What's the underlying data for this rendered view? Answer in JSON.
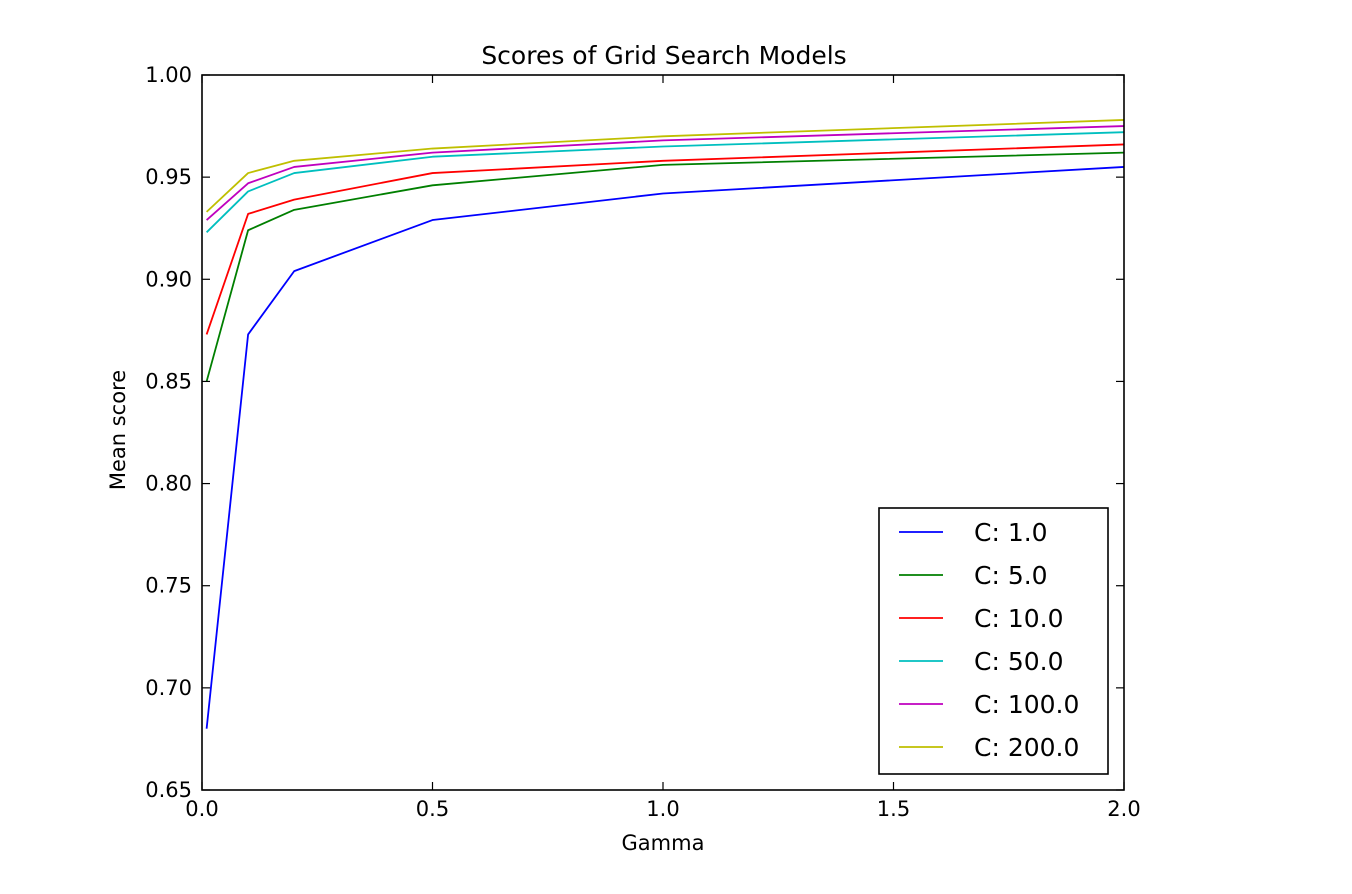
{
  "chart_data": {
    "type": "line",
    "title": "Scores of Grid Search Models",
    "xlabel": "Gamma",
    "ylabel": "Mean score",
    "xlim": [
      0.0,
      2.0
    ],
    "ylim": [
      0.65,
      1.0
    ],
    "xticks": [
      0.0,
      0.5,
      1.0,
      1.5,
      2.0
    ],
    "xtick_labels": [
      "0.0",
      "0.5",
      "1.0",
      "1.5",
      "2.0"
    ],
    "yticks": [
      0.65,
      0.7,
      0.75,
      0.8,
      0.85,
      0.9,
      0.95,
      1.0
    ],
    "ytick_labels": [
      "0.65",
      "0.70",
      "0.75",
      "0.80",
      "0.85",
      "0.90",
      "0.95",
      "1.00"
    ],
    "grid": false,
    "legend_position": "lower-right",
    "x": [
      0.01,
      0.1,
      0.2,
      0.5,
      1.0,
      2.0
    ],
    "series": [
      {
        "name": "C: 1.0",
        "color": "#0000ff",
        "values": [
          0.68,
          0.873,
          0.904,
          0.929,
          0.942,
          0.955
        ]
      },
      {
        "name": "C: 5.0",
        "color": "#007f00",
        "values": [
          0.85,
          0.924,
          0.934,
          0.946,
          0.956,
          0.962
        ]
      },
      {
        "name": "C: 10.0",
        "color": "#ff0000",
        "values": [
          0.873,
          0.932,
          0.939,
          0.952,
          0.958,
          0.966
        ]
      },
      {
        "name": "C: 50.0",
        "color": "#00bfbf",
        "values": [
          0.923,
          0.943,
          0.952,
          0.96,
          0.965,
          0.972
        ]
      },
      {
        "name": "C: 100.0",
        "color": "#bf00bf",
        "values": [
          0.929,
          0.947,
          0.955,
          0.962,
          0.968,
          0.975
        ]
      },
      {
        "name": "C: 200.0",
        "color": "#bfbf00",
        "values": [
          0.933,
          0.952,
          0.958,
          0.964,
          0.97,
          0.978
        ]
      }
    ]
  }
}
